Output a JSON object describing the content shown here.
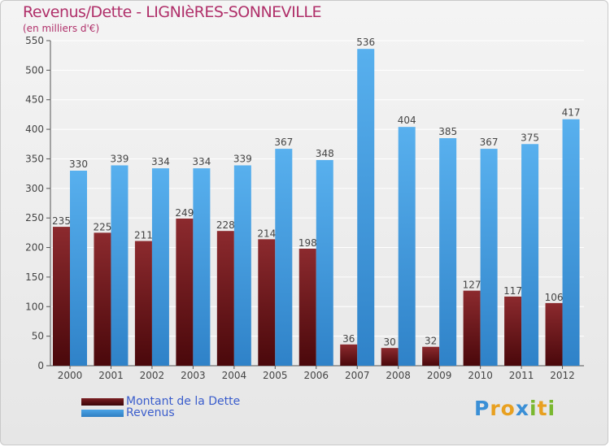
{
  "title": "Revenus/Dette - LIGNIèRES-SONNEVILLE",
  "subtitle": "(en milliers d'€)",
  "logo": {
    "letters": [
      {
        "ch": "P",
        "color": "#3a8fd6"
      },
      {
        "ch": "r",
        "color": "#e8a020"
      },
      {
        "ch": "o",
        "color": "#e8a020"
      },
      {
        "ch": "x",
        "color": "#3a8fd6"
      },
      {
        "ch": "i",
        "color": "#7ab830"
      },
      {
        "ch": "t",
        "color": "#e8a020"
      },
      {
        "ch": "i",
        "color": "#7ab830"
      }
    ]
  },
  "colors": {
    "dette": "#7a1e22",
    "revenus": "#4aa3e6",
    "title": "#b0306a",
    "legend_text": "#3a5dcc"
  },
  "chart_data": {
    "type": "bar",
    "categories": [
      "2000",
      "2001",
      "2002",
      "2003",
      "2004",
      "2005",
      "2006",
      "2007",
      "2008",
      "2009",
      "2010",
      "2011",
      "2012"
    ],
    "series": [
      {
        "name": "Montant de la Dette",
        "color": "#7a1e22",
        "values": [
          235,
          225,
          211,
          249,
          228,
          214,
          198,
          36,
          30,
          32,
          127,
          117,
          106
        ]
      },
      {
        "name": "Revenus",
        "color": "#4aa3e6",
        "values": [
          330,
          339,
          334,
          334,
          339,
          367,
          348,
          536,
          404,
          385,
          367,
          375,
          417
        ]
      }
    ],
    "ylim": [
      0,
      550
    ],
    "yticks": [
      0,
      50,
      100,
      150,
      200,
      250,
      300,
      350,
      400,
      450,
      500,
      550
    ],
    "grid": true,
    "legend": "bottom-left"
  }
}
